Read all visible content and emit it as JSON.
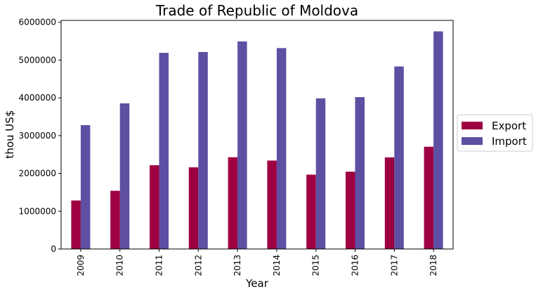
{
  "chart_data": {
    "type": "bar",
    "title": "Trade of Republic of Moldova",
    "xlabel": "Year",
    "ylabel": "thou US$",
    "categories": [
      "2009",
      "2010",
      "2011",
      "2012",
      "2013",
      "2014",
      "2015",
      "2016",
      "2017",
      "2018"
    ],
    "series": [
      {
        "name": "Export",
        "color": "#9e0142",
        "values": [
          1283000,
          1541000,
          2217000,
          2162000,
          2428000,
          2340000,
          1967000,
          2045000,
          2425000,
          2706000
        ]
      },
      {
        "name": "Import",
        "color": "#5e4fa2",
        "values": [
          3278000,
          3855000,
          5191000,
          5213000,
          5493000,
          5317000,
          3987000,
          4020000,
          4831000,
          5760000
        ]
      }
    ],
    "ylim": [
      0,
      6050000
    ],
    "yticks": [
      "0",
      "1000000",
      "2000000",
      "3000000",
      "4000000",
      "5000000",
      "6000000"
    ],
    "grid": false,
    "legend": {
      "position": "outside-right",
      "items": [
        "Export",
        "Import"
      ]
    }
  }
}
